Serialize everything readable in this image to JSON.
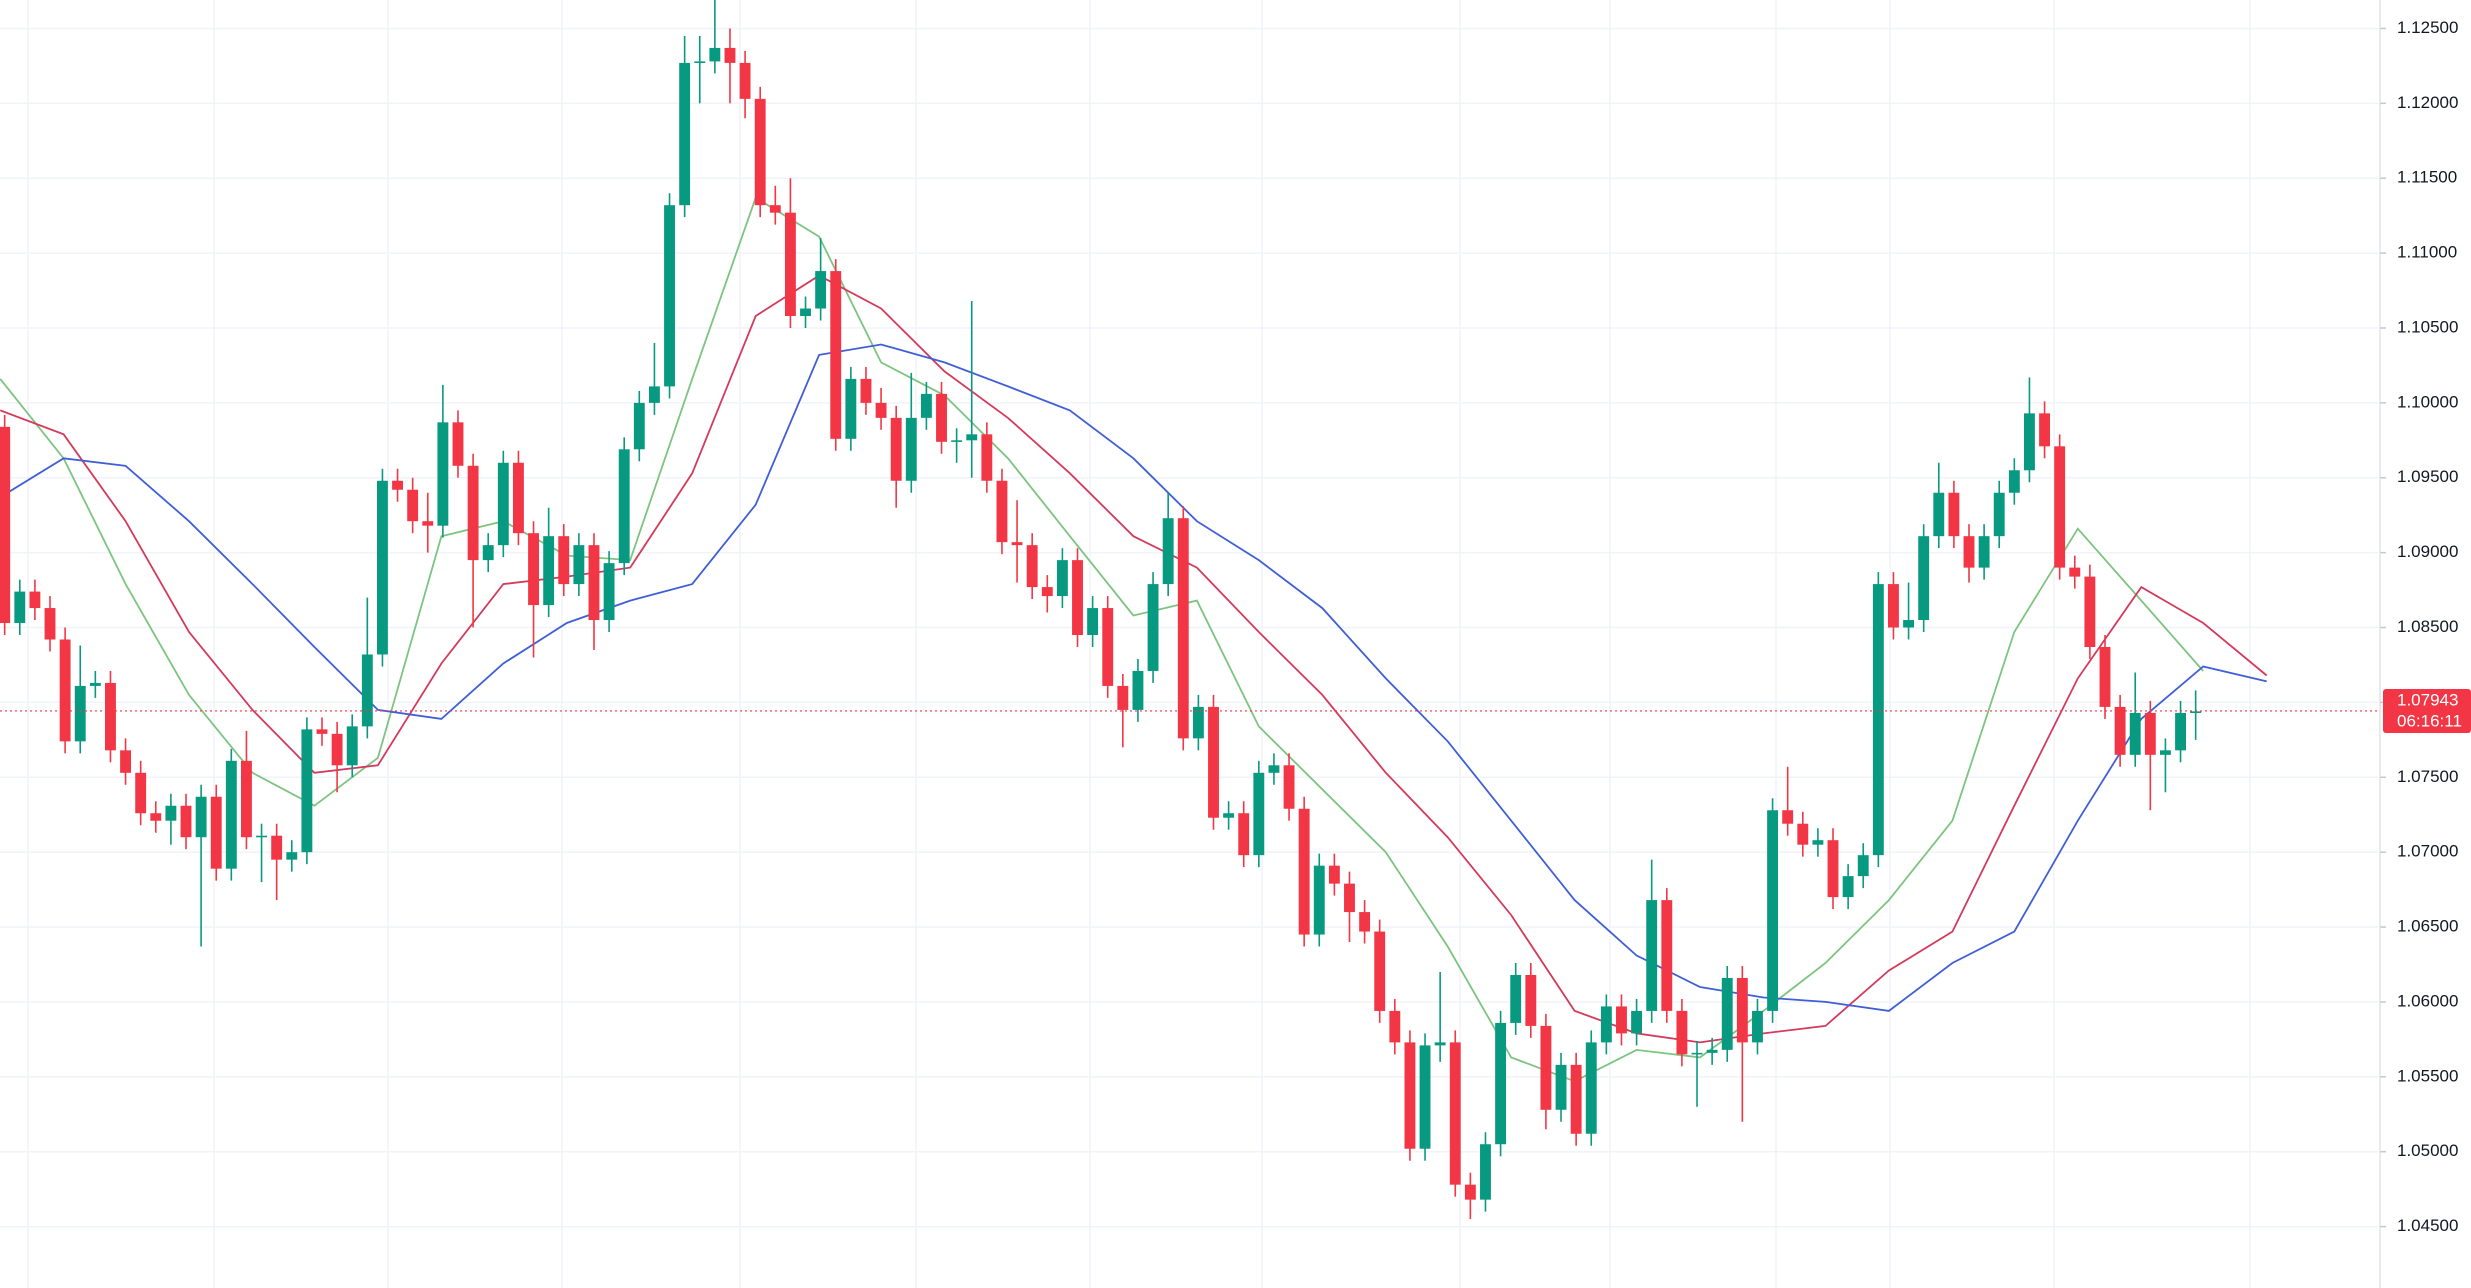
{
  "chart_data": {
    "type": "candlestick",
    "xlim": [
      -0.31,
      157.2
    ],
    "ylim": [
      1.0409,
      1.1269
    ],
    "yticks": [
      {
        "value": 1.045,
        "label": "1.04500"
      },
      {
        "value": 1.05,
        "label": "1.05000"
      },
      {
        "value": 1.055,
        "label": "1.05500"
      },
      {
        "value": 1.06,
        "label": "1.06000"
      },
      {
        "value": 1.065,
        "label": "1.06500"
      },
      {
        "value": 1.07,
        "label": "1.07000"
      },
      {
        "value": 1.075,
        "label": "1.07500"
      },
      {
        "value": 1.08,
        "label": "1.08000"
      },
      {
        "value": 1.085,
        "label": "1.08500"
      },
      {
        "value": 1.09,
        "label": "1.09000"
      },
      {
        "value": 1.095,
        "label": "1.09500"
      },
      {
        "value": 1.1,
        "label": "1.10000"
      },
      {
        "value": 1.105,
        "label": "1.10500"
      },
      {
        "value": 1.11,
        "label": "1.11000"
      },
      {
        "value": 1.115,
        "label": "1.11500"
      },
      {
        "value": 1.12,
        "label": "1.12000"
      },
      {
        "value": 1.125,
        "label": "1.12500"
      }
    ],
    "grid": true,
    "up_color": "#089981",
    "down_color": "#f23645",
    "open": [
      1.0984,
      1.0853,
      1.0874,
      1.0863,
      1.0842,
      1.0774,
      1.0811,
      1.0813,
      1.0768,
      1.0753,
      1.0726,
      1.0721,
      1.0731,
      1.071,
      1.0737,
      1.0689,
      1.0761,
      1.071,
      1.0711,
      1.0695,
      1.07,
      1.0782,
      1.0779,
      1.0758,
      1.0784,
      1.0832,
      1.0948,
      1.0942,
      1.0921,
      1.0918,
      1.0987,
      1.0958,
      1.0895,
      1.0905,
      1.096,
      1.0913,
      1.0865,
      1.0911,
      1.0879,
      1.0905,
      1.0855,
      1.0893,
      1.0969,
      1.1,
      1.1011,
      1.1132,
      1.1227,
      1.1228,
      1.1237,
      1.1227,
      1.1203,
      1.1132,
      1.1127,
      1.1058,
      1.1063,
      1.1088,
      1.0976,
      1.1016,
      1.1,
      1.099,
      1.0948,
      1.099,
      1.1006,
      1.0974,
      1.0975,
      1.0979,
      1.0948,
      1.0907,
      1.0905,
      1.0877,
      1.0871,
      1.0895,
      1.0845,
      1.0863,
      1.0811,
      1.0795,
      1.0821,
      1.0879,
      1.0923,
      1.0776,
      1.0797,
      1.0723,
      1.0726,
      1.0698,
      1.0753,
      1.0758,
      1.0729,
      1.0645,
      1.0691,
      1.0679,
      1.066,
      1.0647,
      1.0594,
      1.0573,
      1.0502,
      1.0571,
      1.0573,
      1.0478,
      1.0468,
      1.0505,
      1.0586,
      1.0618,
      1.0584,
      1.0528,
      1.0558,
      1.0512,
      1.0573,
      1.0597,
      1.0579,
      1.0594,
      1.0668,
      1.0594,
      1.0565,
      1.0566,
      1.0568,
      1.0616,
      1.0573,
      1.0594,
      1.0728,
      1.0719,
      1.0705,
      1.0708,
      1.067,
      1.0684,
      1.0698,
      1.0879,
      1.085,
      1.0855,
      1.0911,
      1.094,
      1.0911,
      1.089,
      1.0911,
      1.094,
      1.0955,
      1.0993,
      1.0971,
      1.089,
      1.0884,
      1.0837,
      1.0797,
      1.0765,
      1.0793,
      1.0765,
      1.0768,
      1.0793
    ],
    "high": [
      1.0992,
      1.0882,
      1.0882,
      1.0871,
      1.085,
      1.0838,
      1.0821,
      1.0821,
      1.0776,
      1.0761,
      1.0734,
      1.0739,
      1.0739,
      1.0745,
      1.0745,
      1.0769,
      1.0781,
      1.0719,
      1.0719,
      1.0708,
      1.079,
      1.079,
      1.0787,
      1.0792,
      1.087,
      1.0956,
      1.0956,
      1.095,
      1.094,
      1.1012,
      1.0995,
      1.0966,
      1.0913,
      1.0968,
      1.0968,
      1.0921,
      1.093,
      1.0919,
      1.0913,
      1.0913,
      1.0901,
      1.0977,
      1.1008,
      1.104,
      1.114,
      1.1245,
      1.1245,
      1.1269,
      1.125,
      1.1235,
      1.1211,
      1.1145,
      1.115,
      1.1071,
      1.111,
      1.1096,
      1.1024,
      1.1024,
      1.101,
      1.0998,
      1.102,
      1.1014,
      1.1014,
      1.0983,
      1.1068,
      1.0987,
      1.0956,
      1.0935,
      1.0913,
      1.0885,
      1.0903,
      1.0903,
      1.0871,
      1.0871,
      1.0819,
      1.0829,
      1.0887,
      1.094,
      1.0931,
      1.0805,
      1.0805,
      1.0734,
      1.0734,
      1.0761,
      1.0766,
      1.0766,
      1.0737,
      1.0699,
      1.0699,
      1.0687,
      1.0668,
      1.0655,
      1.0602,
      1.0581,
      1.0579,
      1.062,
      1.0581,
      1.0486,
      1.0513,
      1.0594,
      1.0626,
      1.0626,
      1.0592,
      1.0566,
      1.0566,
      1.0581,
      1.0605,
      1.0605,
      1.0602,
      1.0695,
      1.0676,
      1.0602,
      1.0574,
      1.0576,
      1.0624,
      1.0624,
      1.0602,
      1.0736,
      1.0757,
      1.0727,
      1.0716,
      1.0716,
      1.0692,
      1.0706,
      1.0887,
      1.0887,
      1.088,
      1.0919,
      1.096,
      1.0948,
      1.0919,
      1.0919,
      1.0948,
      1.0963,
      1.1017,
      1.1001,
      1.0979,
      1.0898,
      1.0892,
      1.0845,
      1.0805,
      1.082,
      1.0801,
      1.0776,
      1.0801,
      1.0808
    ],
    "low": [
      1.0845,
      1.0845,
      1.0855,
      1.0834,
      1.0766,
      1.0766,
      1.0803,
      1.076,
      1.0745,
      1.0718,
      1.0713,
      1.0705,
      1.0702,
      1.0637,
      1.0681,
      1.0681,
      1.0702,
      1.068,
      1.0668,
      1.0687,
      1.0692,
      1.0771,
      1.074,
      1.075,
      1.0776,
      1.0824,
      1.0934,
      1.0913,
      1.09,
      1.091,
      1.095,
      1.085,
      1.0887,
      1.0897,
      1.0905,
      1.083,
      1.0857,
      1.0871,
      1.0871,
      1.0835,
      1.0847,
      1.0885,
      1.0961,
      1.0992,
      1.1003,
      1.1124,
      1.12,
      1.122,
      1.12,
      1.119,
      1.1124,
      1.1119,
      1.105,
      1.105,
      1.1055,
      1.0968,
      1.0968,
      1.0992,
      1.0982,
      1.093,
      1.094,
      1.0982,
      1.0966,
      1.096,
      1.095,
      1.094,
      1.0899,
      1.088,
      1.0869,
      1.086,
      1.0863,
      1.0837,
      1.0837,
      1.0803,
      1.077,
      1.0787,
      1.0813,
      1.0871,
      1.0768,
      1.0768,
      1.0715,
      1.0715,
      1.069,
      1.069,
      1.0745,
      1.0721,
      1.0637,
      1.0637,
      1.0671,
      1.064,
      1.0639,
      1.0586,
      1.0565,
      1.0494,
      1.0494,
      1.056,
      1.047,
      1.0455,
      1.046,
      1.0497,
      1.0578,
      1.0576,
      1.0515,
      1.052,
      1.0504,
      1.0504,
      1.0565,
      1.0571,
      1.0571,
      1.0586,
      1.0586,
      1.0557,
      1.053,
      1.0558,
      1.056,
      1.052,
      1.0565,
      1.0586,
      1.0711,
      1.0697,
      1.0697,
      1.0662,
      1.0662,
      1.0676,
      1.069,
      1.0842,
      1.0842,
      1.0847,
      1.0903,
      1.0903,
      1.088,
      1.0882,
      1.0903,
      1.0932,
      1.0947,
      1.0963,
      1.0882,
      1.0876,
      1.0829,
      1.0789,
      1.0757,
      1.0757,
      1.0728,
      1.074,
      1.076,
      1.0775
    ],
    "close": [
      1.0853,
      1.0874,
      1.0863,
      1.0842,
      1.0774,
      1.0811,
      1.0813,
      1.0768,
      1.0753,
      1.0726,
      1.0721,
      1.0731,
      1.071,
      1.0737,
      1.0689,
      1.0761,
      1.071,
      1.0711,
      1.0695,
      1.07,
      1.0782,
      1.0779,
      1.0758,
      1.0784,
      1.0832,
      1.0948,
      1.0942,
      1.0921,
      1.0918,
      1.0987,
      1.0958,
      1.0895,
      1.0905,
      1.096,
      1.0913,
      1.0865,
      1.0911,
      1.0879,
      1.0905,
      1.0855,
      1.0893,
      1.0969,
      1.1,
      1.1011,
      1.1132,
      1.1227,
      1.1228,
      1.1237,
      1.1227,
      1.1203,
      1.1132,
      1.1127,
      1.1058,
      1.1063,
      1.1088,
      1.0976,
      1.1016,
      1.1,
      1.099,
      1.0948,
      1.099,
      1.1006,
      1.0974,
      1.0975,
      1.0979,
      1.0948,
      1.0907,
      1.0905,
      1.0877,
      1.0871,
      1.0895,
      1.0845,
      1.0863,
      1.0811,
      1.0795,
      1.0821,
      1.0879,
      1.0923,
      1.0776,
      1.0797,
      1.0723,
      1.0726,
      1.0698,
      1.0753,
      1.0758,
      1.0729,
      1.0645,
      1.0691,
      1.0679,
      1.066,
      1.0647,
      1.0594,
      1.0573,
      1.0502,
      1.0571,
      1.0573,
      1.0478,
      1.0468,
      1.0505,
      1.0586,
      1.0618,
      1.0584,
      1.0528,
      1.0558,
      1.0512,
      1.0573,
      1.0597,
      1.0579,
      1.0594,
      1.0668,
      1.0594,
      1.0565,
      1.0566,
      1.0568,
      1.0616,
      1.0573,
      1.0594,
      1.0728,
      1.0719,
      1.0705,
      1.0708,
      1.067,
      1.0684,
      1.0698,
      1.0879,
      1.085,
      1.0855,
      1.0911,
      1.094,
      1.0911,
      1.089,
      1.0911,
      1.094,
      1.0955,
      1.0993,
      1.0971,
      1.089,
      1.0884,
      1.0837,
      1.0797,
      1.0765,
      1.0793,
      1.0765,
      1.0768,
      1.0793,
      1.0794
    ],
    "series": [
      {
        "color": "#7cc47f",
        "x": [
          -0.3,
          3.9,
          8.0,
          12.2,
          16.4,
          20.5,
          24.7,
          28.9,
          33.0,
          37.2,
          41.4,
          45.5,
          49.7,
          53.9,
          58.0,
          62.2,
          66.4,
          70.5,
          74.7,
          78.9,
          83.0,
          87.2,
          91.4,
          95.5,
          99.7,
          103.9,
          108.0,
          112.2,
          116.4,
          120.5,
          124.7,
          128.9,
          133.0,
          137.2,
          141.4,
          145.5,
          149.7
        ],
        "values": [
          1.1016,
          1.0963,
          1.0879,
          1.0805,
          1.0753,
          1.0731,
          1.0763,
          1.0911,
          1.0921,
          1.0898,
          1.0895,
          1.1016,
          1.1137,
          1.1111,
          1.1027,
          1.1005,
          1.0963,
          1.0911,
          1.0858,
          1.0868,
          1.0784,
          1.0742,
          1.07,
          1.0637,
          1.0563,
          1.0547,
          1.0568,
          1.0563,
          1.0594,
          1.0626,
          1.0668,
          1.0721,
          1.0847,
          1.0916,
          1.0868,
          1.0821,
          null
        ]
      },
      {
        "color": "#d43a5c",
        "x": [
          -0.3,
          3.9,
          8.0,
          12.2,
          16.4,
          20.5,
          24.7,
          28.9,
          33.0,
          37.2,
          41.4,
          45.5,
          49.7,
          53.9,
          58.0,
          62.2,
          66.4,
          70.5,
          74.7,
          78.9,
          83.0,
          87.2,
          91.4,
          95.5,
          99.7,
          103.9,
          108.0,
          112.2,
          116.4,
          120.5,
          124.7,
          128.9,
          133.0,
          137.2,
          141.4,
          145.5,
          149.7
        ],
        "values": [
          1.0995,
          1.0979,
          1.0921,
          1.0847,
          1.0795,
          1.0753,
          1.0758,
          1.0826,
          1.0879,
          1.0884,
          1.089,
          1.0953,
          1.1058,
          1.1085,
          1.1063,
          1.1021,
          1.099,
          1.0953,
          1.0911,
          1.089,
          1.0847,
          1.0805,
          1.0753,
          1.071,
          1.0658,
          1.0594,
          1.0579,
          1.0573,
          1.0579,
          1.0584,
          1.0621,
          1.0647,
          1.0731,
          1.0816,
          1.0877,
          1.0853,
          1.0818
        ]
      },
      {
        "color": "#3f5fd6",
        "x": [
          -0.3,
          3.9,
          8.0,
          12.2,
          16.4,
          20.5,
          24.7,
          28.9,
          33.0,
          37.2,
          41.4,
          45.5,
          49.7,
          53.9,
          58.0,
          62.2,
          66.4,
          70.5,
          74.7,
          78.9,
          83.0,
          87.2,
          91.4,
          95.5,
          99.7,
          103.9,
          108.0,
          112.2,
          116.4,
          120.5,
          124.7,
          128.9,
          133.0,
          137.2,
          141.4,
          145.5,
          149.7
        ],
        "values": [
          1.0937,
          1.0963,
          1.0958,
          1.0921,
          1.0879,
          1.0837,
          1.0795,
          1.0789,
          1.0826,
          1.0853,
          1.0868,
          1.0879,
          1.0932,
          1.1032,
          1.1039,
          1.1027,
          1.1011,
          1.0995,
          1.0963,
          1.0921,
          1.0895,
          1.0863,
          1.0816,
          1.0774,
          1.0721,
          1.0668,
          1.0631,
          1.061,
          1.0603,
          1.06,
          1.0594,
          1.0626,
          1.0647,
          1.0721,
          1.0789,
          1.0824,
          1.0814
        ]
      }
    ],
    "last_price": {
      "value": 1.07943,
      "label": "1.07943"
    },
    "countdown": "06:16:11"
  }
}
